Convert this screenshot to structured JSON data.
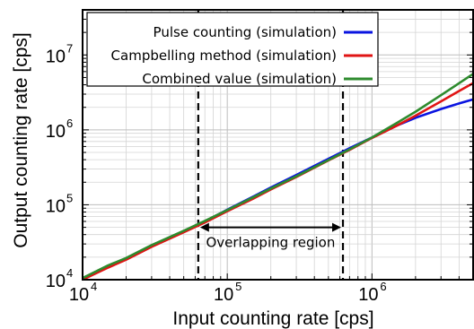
{
  "chart_data": {
    "type": "line",
    "title": "",
    "xlabel": "Input counting rate [cps]",
    "ylabel": "Output counting rate [cps]",
    "xscale": "log",
    "yscale": "log",
    "xlim": [
      10000,
      5000000
    ],
    "ylim": [
      10000,
      40000000
    ],
    "grid": true,
    "legend_position": "top-left",
    "x_ticks": [
      {
        "base": "10",
        "exp": "4",
        "value": 10000
      },
      {
        "base": "10",
        "exp": "5",
        "value": 100000
      },
      {
        "base": "10",
        "exp": "6",
        "value": 1000000
      }
    ],
    "y_ticks": [
      {
        "base": "10",
        "exp": "4",
        "value": 10000
      },
      {
        "base": "10",
        "exp": "5",
        "value": 100000
      },
      {
        "base": "10",
        "exp": "6",
        "value": 1000000
      },
      {
        "base": "10",
        "exp": "7",
        "value": 10000000
      }
    ],
    "series": [
      {
        "name": "Pulse counting (simulation)",
        "color": "#0a14e0",
        "x": [
          10000,
          15000,
          20000,
          30000,
          50000,
          70000,
          100000,
          150000,
          200000,
          300000,
          500000,
          700000,
          1000000,
          1500000,
          2000000,
          3000000,
          4000000,
          5000000
        ],
        "y": [
          10000,
          15000,
          19000,
          28000,
          44000,
          60000,
          86000,
          128000,
          170000,
          250000,
          410000,
          570000,
          790000,
          1150000,
          1450000,
          1900000,
          2250000,
          2550000
        ]
      },
      {
        "name": "Campbelling method (simulation)",
        "color": "#e01414",
        "x": [
          10000,
          15000,
          20000,
          30000,
          50000,
          70000,
          100000,
          150000,
          200000,
          300000,
          500000,
          700000,
          1000000,
          1500000,
          2000000,
          3000000,
          4000000,
          5000000
        ],
        "y": [
          10000,
          14500,
          18500,
          27500,
          43000,
          58000,
          82000,
          120000,
          160000,
          235000,
          390000,
          540000,
          780000,
          1150000,
          1550000,
          2400000,
          3300000,
          4200000
        ]
      },
      {
        "name": "Combined value (simulation)",
        "color": "#2e8b2e",
        "x": [
          10000,
          15000,
          20000,
          30000,
          50000,
          70000,
          100000,
          150000,
          200000,
          300000,
          500000,
          700000,
          1000000,
          1500000,
          2000000,
          3000000,
          4000000,
          5000000
        ],
        "y": [
          10500,
          15500,
          19500,
          29000,
          45000,
          61000,
          85000,
          125000,
          165000,
          240000,
          395000,
          550000,
          790000,
          1250000,
          1750000,
          2900000,
          4200000,
          5600000
        ]
      }
    ],
    "vlines": [
      63000,
      630000
    ],
    "annotation": {
      "text": "Overlapping region",
      "x_from": 63000,
      "x_to": 630000,
      "y": 50000
    }
  }
}
